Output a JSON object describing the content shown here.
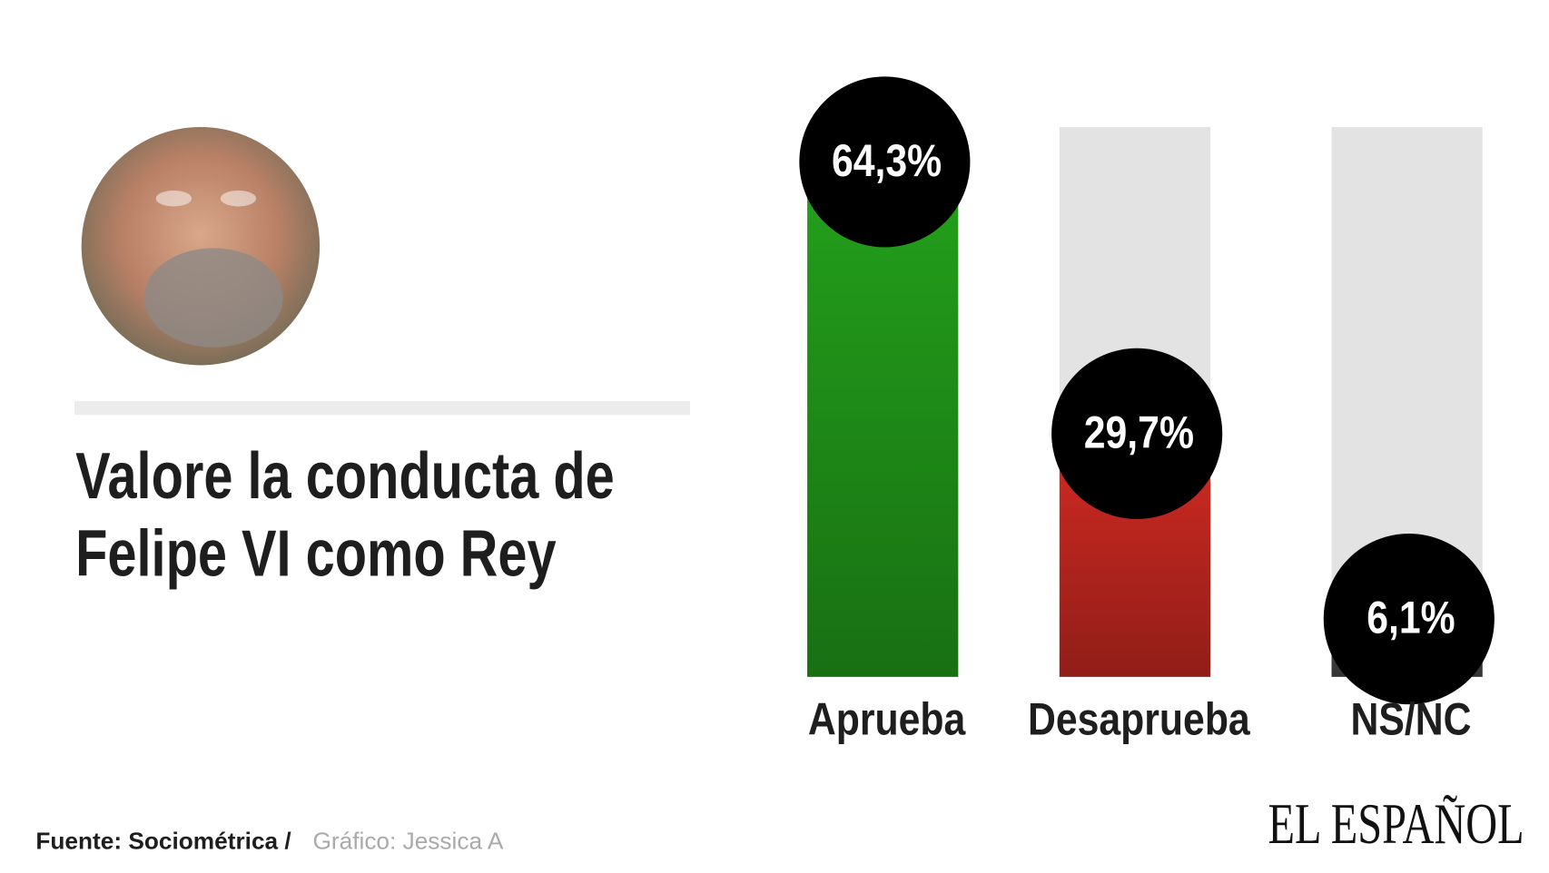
{
  "chart_data": {
    "type": "bar",
    "title": "Valore la conducta de Felipe VI como Rey",
    "categories": [
      "Aprueba",
      "Desaprueba",
      "NS/NC"
    ],
    "values": [
      64.3,
      29.7,
      6.1
    ],
    "value_labels": [
      "64,3%",
      "29,7%",
      "6,1%"
    ],
    "colors": [
      "#23a01b",
      "#cf2a22",
      "#4a4a4a"
    ],
    "ylim": [
      0,
      70
    ],
    "source": "Fuente: Sociométrica /",
    "credit": "Gráfico: Jessica A",
    "logo": "EL ESPAÑOL"
  }
}
